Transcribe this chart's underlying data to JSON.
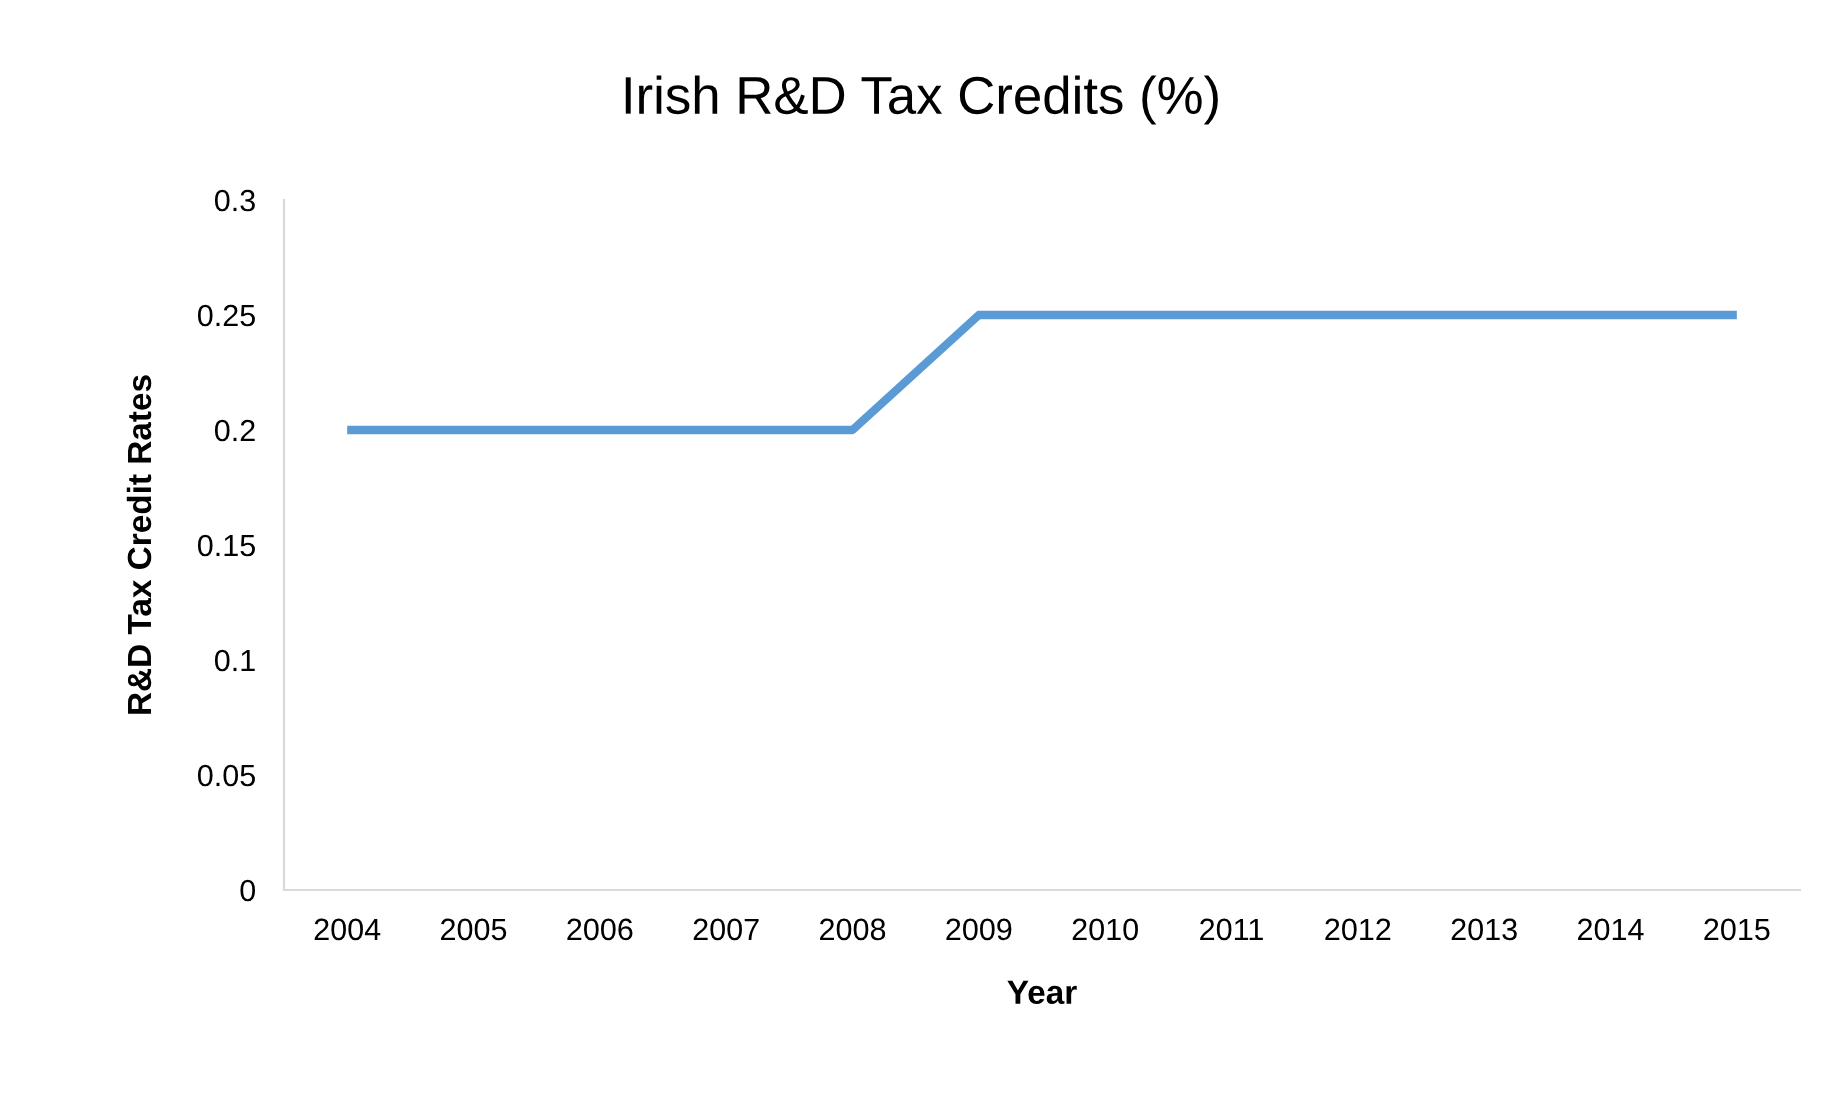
{
  "chart_data": {
    "type": "line",
    "title": "Irish R&D Tax Credits (%)",
    "xlabel": "Year",
    "ylabel": "R&D Tax Credit Rates",
    "categories": [
      "2004",
      "2005",
      "2006",
      "2007",
      "2008",
      "2009",
      "2010",
      "2011",
      "2012",
      "2013",
      "2014",
      "2015"
    ],
    "series": [
      {
        "color": "#5b9bd5",
        "values": [
          0.2,
          0.2,
          0.2,
          0.2,
          0.2,
          0.25,
          0.25,
          0.25,
          0.25,
          0.25,
          0.25,
          0.25
        ]
      }
    ],
    "ylim": [
      0,
      0.3
    ],
    "yticks": [
      0,
      0.05,
      0.1,
      0.15,
      0.2,
      0.25,
      0.3
    ],
    "grid": false,
    "marker": "none",
    "line_style": "solid"
  }
}
